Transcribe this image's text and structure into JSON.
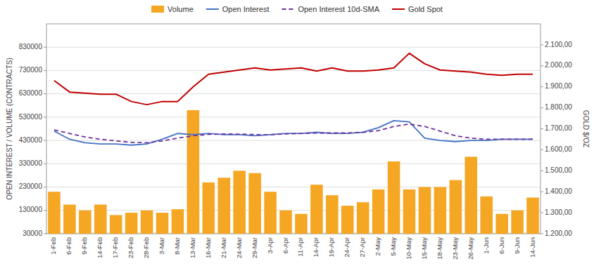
{
  "chart_data": {
    "type": "bar",
    "categories": [
      "1-Feb",
      "6-Feb",
      "9-Feb",
      "14-Feb",
      "17-Feb",
      "23-Feb",
      "28-Feb",
      "3-Mar",
      "8-Mar",
      "13-Mar",
      "16-Mar",
      "21-Mar",
      "24-Mar",
      "29-Mar",
      "3-Apr",
      "6-Apr",
      "11-Apr",
      "14-Apr",
      "19-Apr",
      "24-Apr",
      "27-Apr",
      "2-May",
      "5-May",
      "10-May",
      "15-May",
      "18-May",
      "23-May",
      "26-May",
      "1-Jun",
      "6-Jun",
      "9-Jun",
      "14-Jun"
    ],
    "series": [
      {
        "name": "Volume",
        "type": "bar",
        "color": "#f5a623",
        "values": [
          210000,
          155000,
          130000,
          155000,
          110000,
          120000,
          130000,
          120000,
          135000,
          560000,
          250000,
          270000,
          300000,
          290000,
          210000,
          130000,
          115000,
          240000,
          195000,
          150000,
          165000,
          220000,
          340000,
          220000,
          230000,
          230000,
          260000,
          360000,
          190000,
          115000,
          130000,
          185000
        ]
      },
      {
        "name": "Open Interest",
        "type": "line",
        "color": "#4472c4",
        "line_style": "solid",
        "values": [
          470000,
          435000,
          420000,
          415000,
          415000,
          410000,
          415000,
          435000,
          460000,
          455000,
          460000,
          455000,
          455000,
          450000,
          455000,
          460000,
          460000,
          465000,
          460000,
          460000,
          465000,
          485000,
          515000,
          510000,
          440000,
          430000,
          425000,
          430000,
          430000,
          435000,
          435000,
          435000
        ]
      },
      {
        "name": "Open Interest 10d-SMA",
        "type": "line",
        "color": "#7030a0",
        "line_style": "dashed",
        "values": [
          475000,
          460000,
          445000,
          435000,
          428000,
          422000,
          420000,
          428000,
          440000,
          450000,
          456000,
          458000,
          457000,
          455000,
          455000,
          458000,
          460000,
          462000,
          462000,
          462000,
          465000,
          472000,
          490000,
          500000,
          490000,
          470000,
          450000,
          440000,
          435000,
          435000,
          435000,
          435000
        ]
      },
      {
        "name": "Gold Spot",
        "type": "line",
        "color": "#c00000",
        "line_style": "solid",
        "axis": "y2",
        "values": [
          1930,
          1875,
          1870,
          1865,
          1865,
          1830,
          1815,
          1830,
          1830,
          1900,
          1960,
          1970,
          1980,
          1990,
          1980,
          1985,
          1990,
          1975,
          1990,
          1975,
          1975,
          1980,
          1990,
          2060,
          2010,
          1980,
          1975,
          1970,
          1960,
          1955,
          1960,
          1960
        ]
      }
    ],
    "ylabel": "OPEN INTEREST / VOLUME (CONTRACTS)",
    "y2label": "GOLD $/OZ",
    "ylim": [
      30000,
      930000
    ],
    "yticks": [
      30000,
      130000,
      230000,
      330000,
      430000,
      530000,
      630000,
      730000,
      830000
    ],
    "y2lim": [
      1200,
      2200
    ],
    "y2ticks": [
      {
        "value": 1200,
        "label": "1.200,00"
      },
      {
        "value": 1300,
        "label": "1.300,00"
      },
      {
        "value": 1400,
        "label": "1.400,00"
      },
      {
        "value": 1500,
        "label": "1.500,00"
      },
      {
        "value": 1600,
        "label": "1.600,00"
      },
      {
        "value": 1700,
        "label": "1.700,00"
      },
      {
        "value": 1800,
        "label": "1.800,00"
      },
      {
        "value": 1900,
        "label": "1.900,00"
      },
      {
        "value": 2000,
        "label": "2.000,00"
      },
      {
        "value": 2100,
        "label": "2.100,00"
      }
    ],
    "grid": true,
    "legend": "top"
  }
}
